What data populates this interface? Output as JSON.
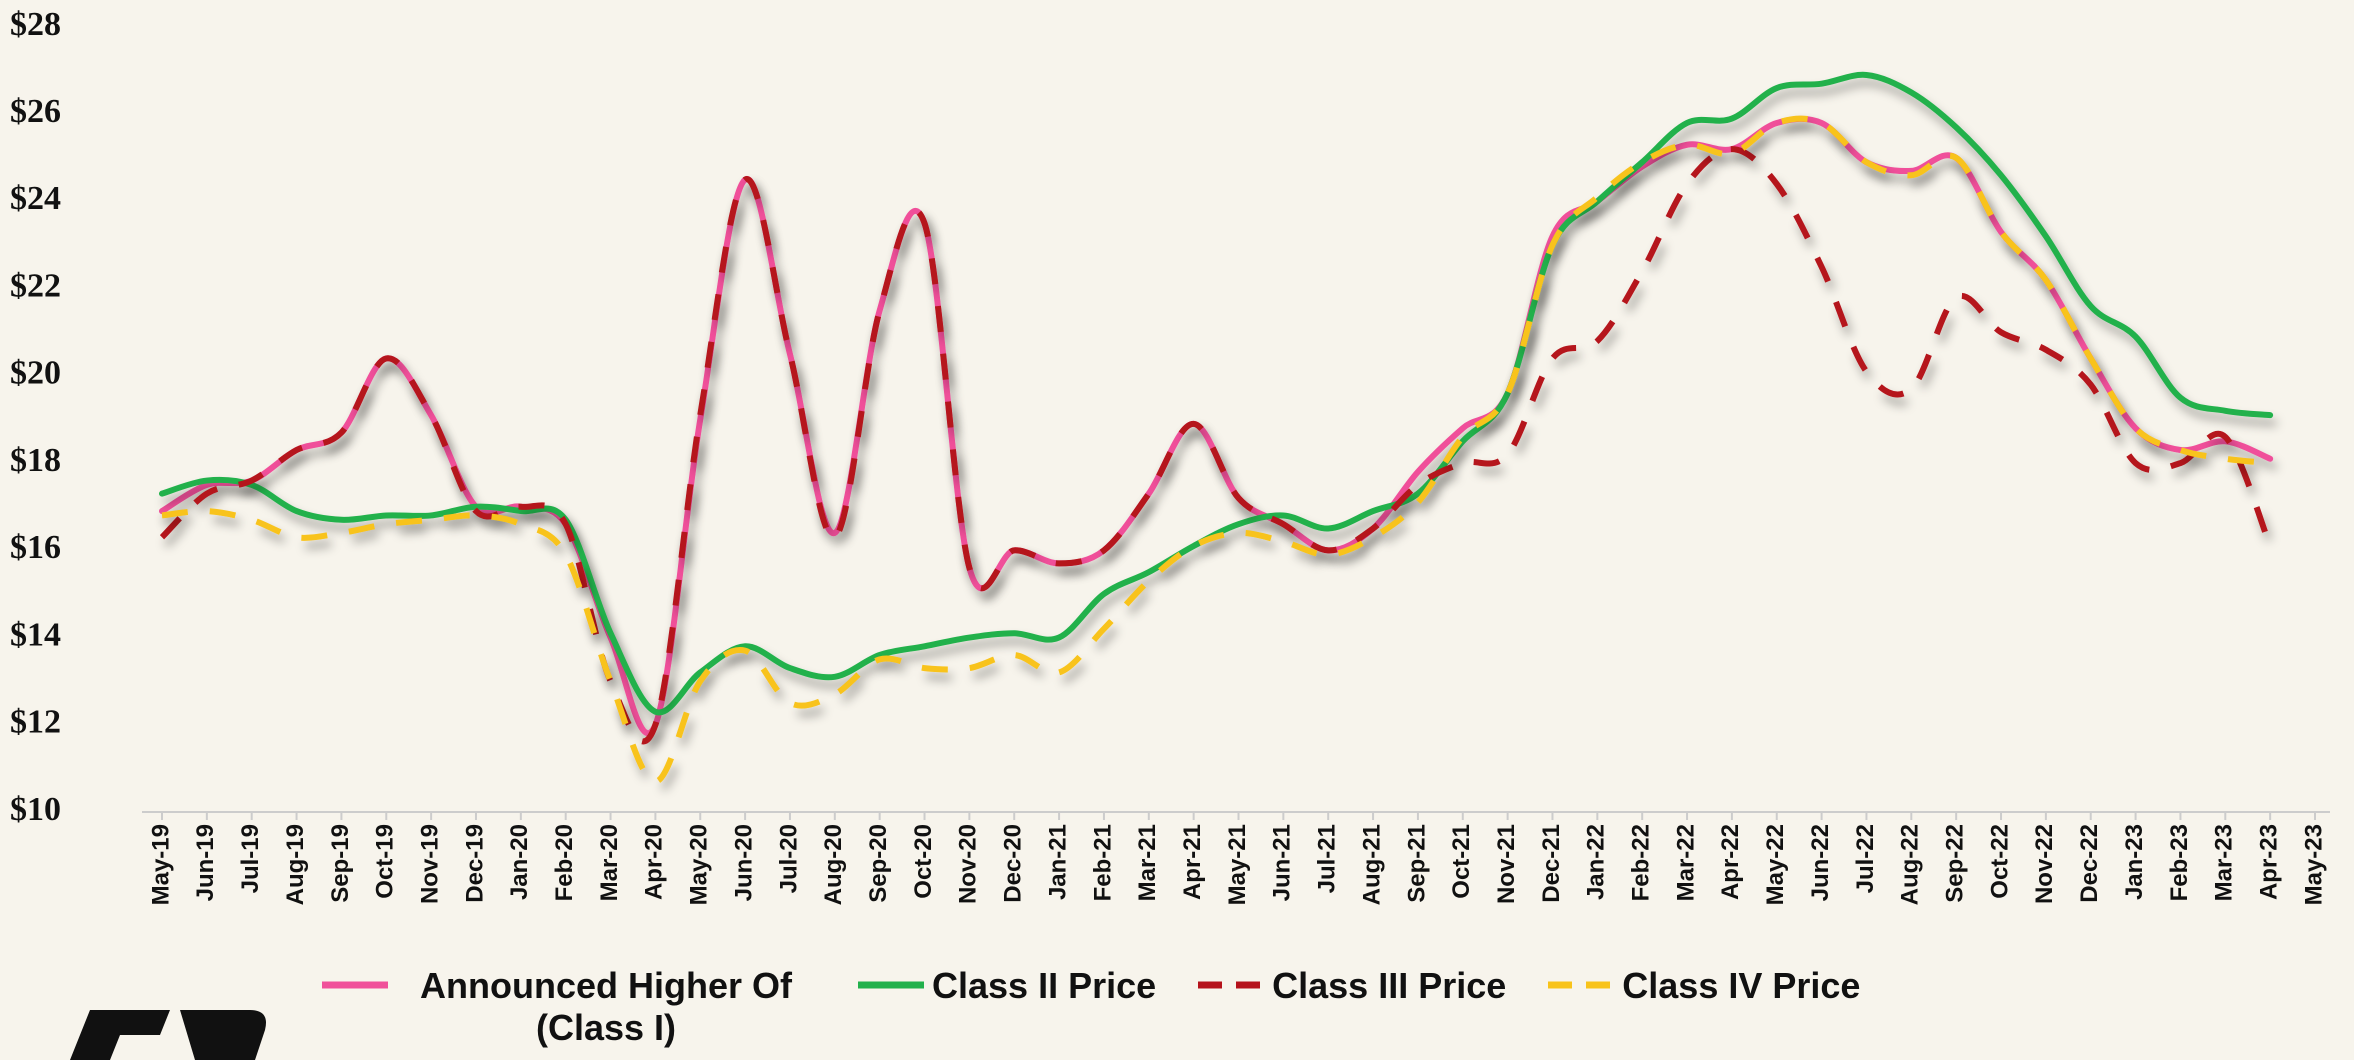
{
  "chart_data": {
    "type": "line",
    "categories": [
      "May-19",
      "Jun-19",
      "Jul-19",
      "Aug-19",
      "Sep-19",
      "Oct-19",
      "Nov-19",
      "Dec-19",
      "Jan-20",
      "Feb-20",
      "Mar-20",
      "Apr-20",
      "May-20",
      "Jun-20",
      "Jul-20",
      "Aug-20",
      "Sep-20",
      "Oct-20",
      "Nov-20",
      "Dec-20",
      "Jan-21",
      "Feb-21",
      "Mar-21",
      "Apr-21",
      "May-21",
      "Jun-21",
      "Jul-21",
      "Aug-21",
      "Sep-21",
      "Oct-21",
      "Nov-21",
      "Dec-21",
      "Jan-22",
      "Feb-22",
      "Mar-22",
      "Apr-22",
      "May-22",
      "Jun-22",
      "Jul-22",
      "Aug-22",
      "Sep-22",
      "Oct-22",
      "Nov-22",
      "Dec-22",
      "Jan-23",
      "Feb-23",
      "Mar-23",
      "Apr-23",
      "May-23"
    ],
    "series": [
      {
        "name": "Announced Higher Of (Class I)",
        "color": "#f0509a",
        "dash": false,
        "values": [
          16.9,
          17.5,
          17.6,
          18.3,
          18.7,
          20.4,
          19.1,
          17.0,
          17.0,
          16.6,
          14.0,
          12.0,
          19.0,
          24.5,
          20.5,
          16.4,
          21.5,
          23.5,
          15.6,
          16.0,
          15.7,
          16.0,
          17.3,
          18.9,
          17.2,
          16.6,
          16.0,
          16.5,
          17.8,
          18.8,
          19.6,
          23.2,
          24.0,
          24.8,
          25.3,
          25.2,
          25.8,
          25.8,
          24.9,
          24.7,
          25.0,
          23.3,
          22.2,
          20.4,
          18.8,
          18.3,
          18.5,
          18.1,
          null
        ]
      },
      {
        "name": "Class II Price",
        "color": "#22b14c",
        "dash": false,
        "values": [
          17.3,
          17.6,
          17.5,
          16.9,
          16.7,
          16.8,
          16.8,
          17.0,
          16.9,
          16.7,
          14.1,
          12.3,
          13.2,
          13.8,
          13.3,
          13.1,
          13.6,
          13.8,
          14.0,
          14.1,
          14.0,
          15.0,
          15.5,
          16.1,
          16.6,
          16.8,
          16.5,
          16.9,
          17.3,
          18.5,
          19.6,
          23.0,
          24.0,
          24.9,
          25.8,
          25.9,
          26.6,
          26.7,
          26.9,
          26.5,
          25.7,
          24.6,
          23.2,
          21.6,
          20.9,
          19.5,
          19.2,
          19.1,
          null
        ]
      },
      {
        "name": "Class III Price",
        "color": "#b5121b",
        "dash": true,
        "values": [
          16.3,
          17.3,
          17.6,
          18.3,
          18.7,
          20.4,
          19.1,
          16.9,
          17.0,
          16.6,
          13.0,
          12.0,
          19.1,
          24.5,
          20.5,
          16.3,
          21.5,
          23.5,
          15.6,
          16.0,
          15.7,
          16.0,
          17.3,
          18.9,
          17.2,
          16.6,
          16.0,
          16.5,
          17.5,
          18.0,
          18.2,
          20.4,
          20.8,
          22.4,
          24.4,
          25.2,
          24.4,
          22.5,
          20.1,
          19.7,
          21.8,
          21.0,
          20.6,
          19.8,
          18.0,
          18.0,
          18.6,
          16.1,
          null
        ]
      },
      {
        "name": "Class IV Price",
        "color": "#f8c31a",
        "dash": true,
        "values": [
          16.8,
          16.9,
          16.7,
          16.3,
          16.4,
          16.6,
          16.7,
          16.8,
          16.6,
          15.9,
          13.0,
          10.7,
          13.0,
          13.7,
          12.5,
          12.7,
          13.5,
          13.3,
          13.3,
          13.6,
          13.2,
          14.2,
          15.3,
          16.1,
          16.4,
          16.2,
          15.9,
          16.3,
          17.1,
          18.6,
          19.6,
          23.0,
          24.1,
          24.9,
          25.3,
          25.1,
          25.8,
          25.8,
          24.9,
          24.6,
          25.0,
          23.3,
          22.2,
          20.4,
          18.8,
          18.3,
          18.1,
          18.0,
          null
        ]
      }
    ],
    "ylim": [
      10,
      28
    ],
    "yticks": [
      {
        "value": 10,
        "label": "$10"
      },
      {
        "value": 12,
        "label": "$12"
      },
      {
        "value": 14,
        "label": "$14"
      },
      {
        "value": 16,
        "label": "$16"
      },
      {
        "value": 18,
        "label": "$18"
      },
      {
        "value": 20,
        "label": "$20"
      },
      {
        "value": 22,
        "label": "$22"
      },
      {
        "value": 24,
        "label": "$24"
      },
      {
        "value": 26,
        "label": "$26"
      },
      {
        "value": 28,
        "label": "$28"
      }
    ],
    "legend": "bottom"
  }
}
